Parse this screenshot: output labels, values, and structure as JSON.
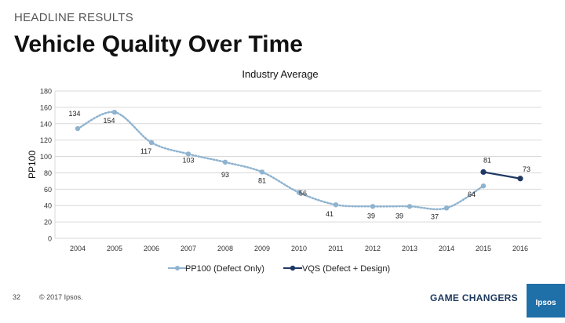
{
  "header": {
    "section_label": "HEADLINE RESULTS",
    "title": "Vehicle Quality Over Time"
  },
  "footer": {
    "page_number": "32",
    "copyright": "© 2017 Ipsos.",
    "brand_text": "GAME CHANGERS",
    "logo_text": "Ipsos"
  },
  "colors": {
    "pp100": "#8fb3cf",
    "vqs": "#1f3864",
    "grid": "#d9d9d9"
  },
  "chart_data": {
    "type": "line",
    "title": "Industry Average",
    "ylabel": "PP100",
    "xlabel": "",
    "ylim": [
      0,
      180
    ],
    "yticks": [
      "0",
      "20",
      "40",
      "60",
      "80",
      "100",
      "120",
      "140",
      "160",
      "180"
    ],
    "categories": [
      "2004",
      "2005",
      "2006",
      "2007",
      "2008",
      "2009",
      "2010",
      "2011",
      "2012",
      "2013",
      "2014",
      "2015",
      "2016"
    ],
    "series": [
      {
        "name": "PP100 (Defect Only)",
        "values": [
          134,
          154,
          117,
          103,
          93,
          81,
          56,
          41,
          39,
          39,
          37,
          64,
          null
        ],
        "labels": [
          "134",
          "154",
          "117",
          "103",
          "93",
          "81",
          "56",
          "41",
          "39",
          "39",
          "37",
          "64",
          ""
        ]
      },
      {
        "name": "VQS (Defect + Design)",
        "values": [
          null,
          null,
          null,
          null,
          null,
          null,
          null,
          null,
          null,
          null,
          null,
          81,
          73
        ],
        "labels": [
          "",
          "",
          "",
          "",
          "",
          "",
          "",
          "",
          "",
          "",
          "",
          "81",
          "73"
        ]
      }
    ],
    "legend_position": "bottom"
  }
}
